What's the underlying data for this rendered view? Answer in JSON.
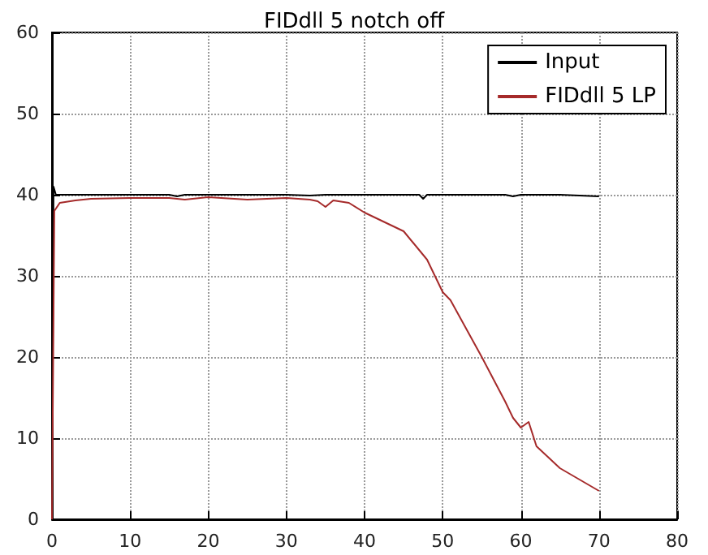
{
  "chart_data": {
    "type": "line",
    "title": "FIDdll 5 notch off",
    "xlim": [
      0,
      80
    ],
    "xticks": [
      0,
      10,
      20,
      30,
      40,
      50,
      60,
      70,
      80
    ],
    "ylim": [
      0,
      60
    ],
    "yticks": [
      0,
      10,
      20,
      30,
      40,
      50,
      60
    ],
    "grid": true,
    "legend": "top right",
    "marker": "none",
    "line_style": "solid",
    "series": [
      {
        "name": "Input",
        "color": "#000000",
        "x": [
          0,
          0.2,
          0.5,
          1,
          5,
          10,
          15,
          16,
          17,
          20,
          25,
          30,
          33,
          35,
          40,
          45,
          47,
          47.5,
          48,
          50,
          55,
          58,
          59,
          60,
          62,
          65,
          70
        ],
        "values": [
          0,
          41,
          40,
          40,
          40,
          40,
          40,
          39.8,
          40,
          40,
          40,
          40,
          39.9,
          40,
          40,
          40,
          40,
          39.5,
          40,
          40,
          40,
          40,
          39.8,
          40,
          40,
          40,
          39.8
        ]
      },
      {
        "name": "FIDdll 5 LP",
        "color": "#a52a2a",
        "x": [
          0,
          0.3,
          1,
          3,
          5,
          10,
          15,
          17,
          20,
          25,
          30,
          33,
          34,
          35,
          36,
          38,
          40,
          45,
          48,
          50,
          51,
          55,
          58,
          59,
          60,
          61,
          62,
          65,
          70
        ],
        "values": [
          0,
          38,
          39,
          39.3,
          39.5,
          39.6,
          39.6,
          39.4,
          39.7,
          39.4,
          39.6,
          39.4,
          39.2,
          38.5,
          39.3,
          39,
          37.8,
          35.5,
          32,
          28,
          27,
          20,
          14.5,
          12.5,
          11.3,
          12,
          9,
          6.3,
          3.5
        ]
      }
    ]
  }
}
